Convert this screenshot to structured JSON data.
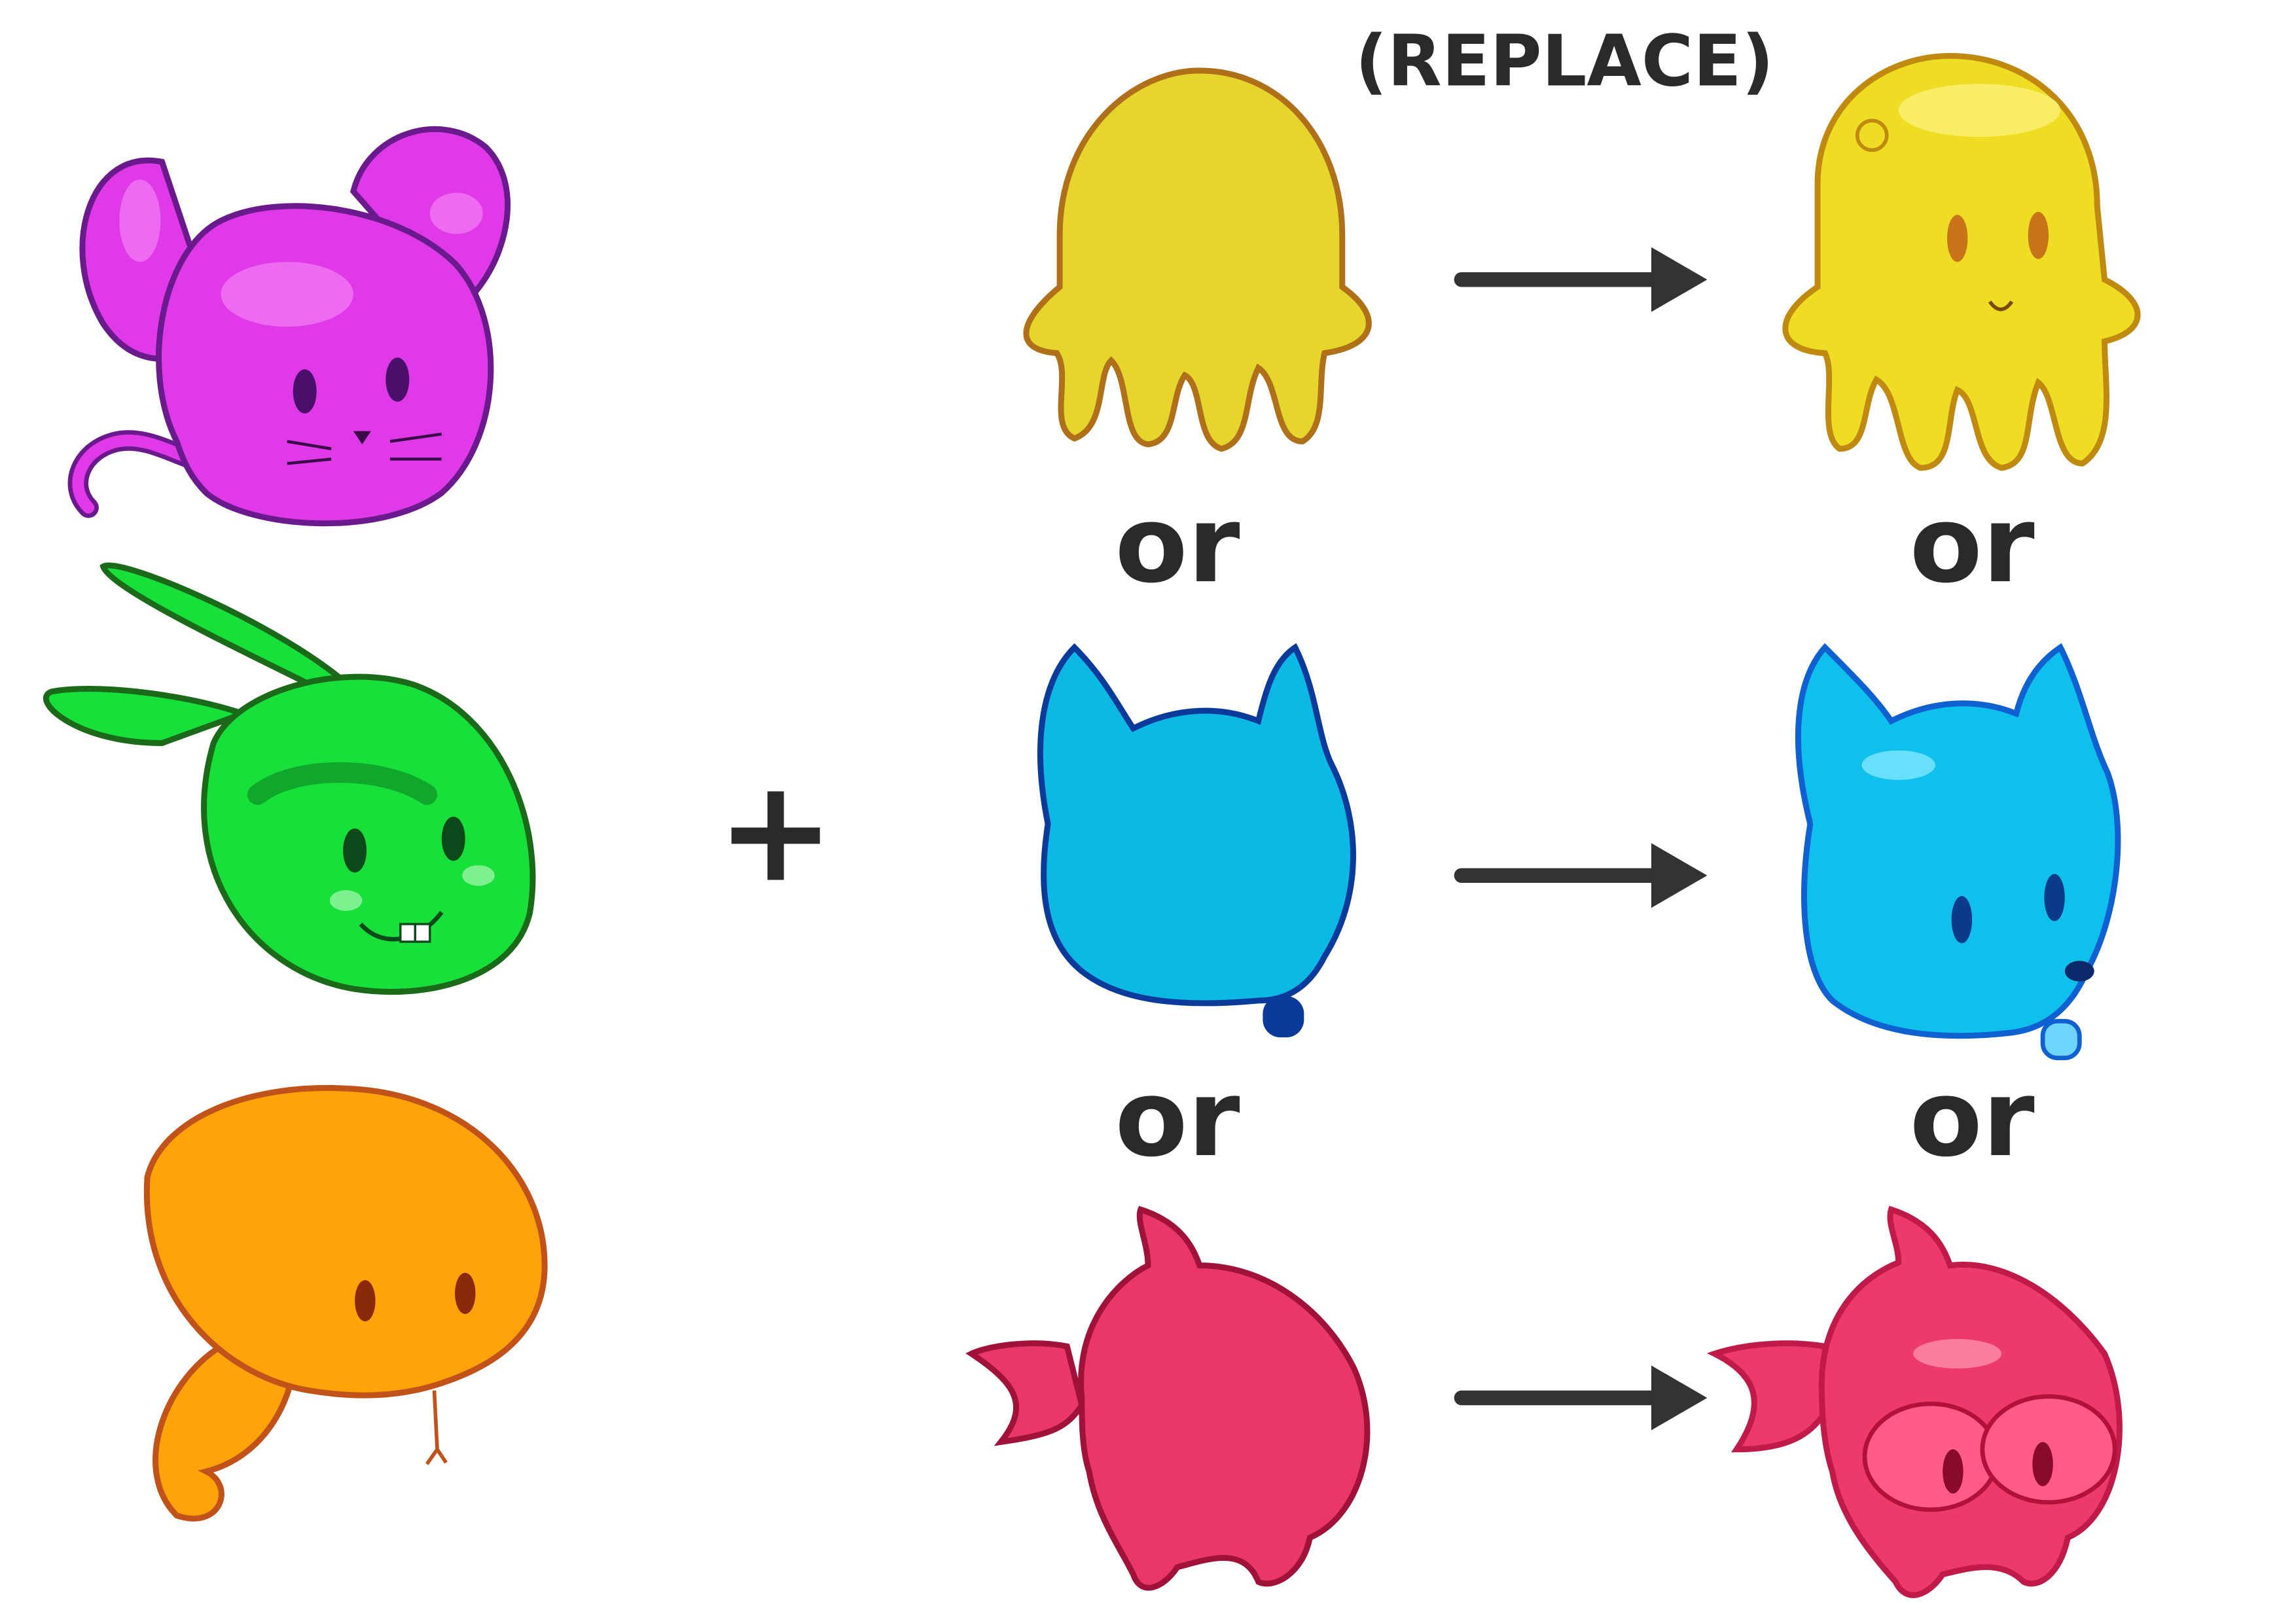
{
  "header": {
    "replace_label": "(REPLACE)"
  },
  "operators": {
    "plus": "+",
    "or": "or"
  },
  "base_heads": [
    {
      "name": "mouse",
      "color": "#e03ae8",
      "outline": "#6a1a8c"
    },
    {
      "name": "rabbit",
      "color": "#18e03a",
      "outline": "#1a6a1a"
    },
    {
      "name": "snake",
      "color": "#ffa30a",
      "outline": "#c0521a"
    }
  ],
  "silhouettes": [
    {
      "name": "jellyfish",
      "color": "#e5d52c",
      "outline": "#b0701a"
    },
    {
      "name": "cat",
      "color": "#0cb9e4",
      "outline": "#0a3a9a"
    },
    {
      "name": "fish",
      "color": "#ea3769",
      "outline": "#a0123a"
    }
  ],
  "results": [
    {
      "name": "jellyfish-character",
      "color": "#eedd22",
      "outline": "#c08a10"
    },
    {
      "name": "cat-character",
      "color": "#0fc0ec",
      "outline": "#0f60d0"
    },
    {
      "name": "fish-character",
      "color": "#ee3a6a",
      "outline": "#c01a4a"
    }
  ]
}
